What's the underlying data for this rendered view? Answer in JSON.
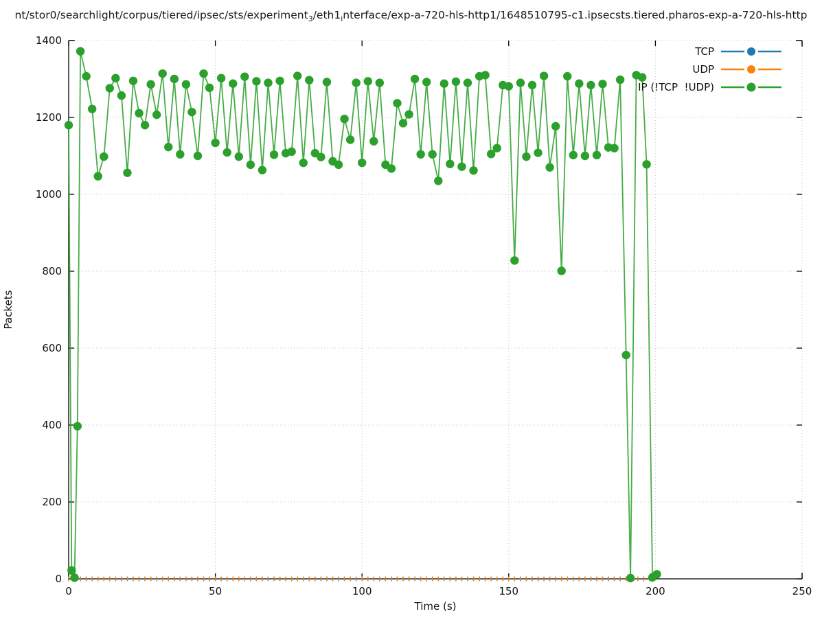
{
  "title": {
    "runs": [
      {
        "t": "nt/stor0/searchlight/corpus/tiered/ipsec/sts/experiment"
      },
      {
        "t": "3",
        "sub": true
      },
      {
        "t": "/eth1"
      },
      {
        "t": "i",
        "sub": true
      },
      {
        "t": "nterface/exp-a-720-hls-http1/1648510795-c1.ipsecsts.tiered.pharos-exp-a-720-hls-http"
      }
    ]
  },
  "axes": {
    "x": {
      "label": "Time (s)",
      "min": 0,
      "max": 250,
      "ticks": [
        0,
        50,
        100,
        150,
        200,
        250
      ]
    },
    "y": {
      "label": "Packets",
      "min": 0,
      "max": 1400,
      "ticks": [
        0,
        200,
        400,
        600,
        800,
        1000,
        1200,
        1400
      ]
    }
  },
  "legend": [
    {
      "label": "TCP",
      "color": "#1f77b4"
    },
    {
      "label": "UDP",
      "color": "#ff7f0e"
    },
    {
      "label": "IP (!TCP  !UDP)",
      "color": "#2ca02c"
    }
  ],
  "colors": {
    "grid": "#c4c4c4",
    "axis": "#000000",
    "tcp": "#1f77b4",
    "udp": "#ff7f0e",
    "ip_other": "#2ca02c"
  },
  "chart_data": {
    "type": "line",
    "title_path": "nt/stor0/searchlight/corpus/tiered/ipsec/sts/experiment_3/eth1_interface/exp-a-720-hls-http1/1648510795-c1.ipsecsts.tiered.pharos-exp-a-720-hls-http",
    "xlabel": "Time (s)",
    "ylabel": "Packets",
    "xlim": [
      0,
      250
    ],
    "ylim": [
      0,
      1400
    ],
    "grid": "dotted, at major ticks",
    "legend_position": "top-right-inside",
    "series": [
      {
        "name": "TCP",
        "color": "#1f77b4",
        "marker": "circle",
        "style": "constant zero, completely hidden beneath UDP markers on the x-axis",
        "value": 0,
        "t_start": 0,
        "t_end": 198,
        "t_step": 2
      },
      {
        "name": "UDP",
        "color": "#ff7f0e",
        "marker": "small-vertical-dash",
        "style": "constant zero along x-axis",
        "value": 0,
        "t_start": 0,
        "t_end": 198,
        "t_step": 2
      },
      {
        "name": "IP (!TCP  !UDP)",
        "color": "#2ca02c",
        "marker": "filled-circle",
        "points": [
          [
            0,
            1180
          ],
          [
            1,
            22
          ],
          [
            2,
            3
          ],
          [
            3,
            397
          ],
          [
            4,
            1372
          ],
          [
            6,
            1307
          ],
          [
            8,
            1222
          ],
          [
            10,
            1047
          ],
          [
            12,
            1098
          ],
          [
            14,
            1276
          ],
          [
            16,
            1302
          ],
          [
            18,
            1257
          ],
          [
            20,
            1056
          ],
          [
            22,
            1295
          ],
          [
            24,
            1211
          ],
          [
            26,
            1180
          ],
          [
            28,
            1286
          ],
          [
            30,
            1207
          ],
          [
            32,
            1314
          ],
          [
            34,
            1123
          ],
          [
            36,
            1300
          ],
          [
            38,
            1104
          ],
          [
            40,
            1286
          ],
          [
            42,
            1214
          ],
          [
            44,
            1100
          ],
          [
            46,
            1314
          ],
          [
            48,
            1277
          ],
          [
            50,
            1134
          ],
          [
            52,
            1302
          ],
          [
            54,
            1109
          ],
          [
            56,
            1288
          ],
          [
            58,
            1098
          ],
          [
            60,
            1306
          ],
          [
            62,
            1077
          ],
          [
            64,
            1294
          ],
          [
            66,
            1063
          ],
          [
            68,
            1290
          ],
          [
            70,
            1103
          ],
          [
            72,
            1295
          ],
          [
            74,
            1107
          ],
          [
            76,
            1111
          ],
          [
            78,
            1308
          ],
          [
            80,
            1082
          ],
          [
            82,
            1297
          ],
          [
            84,
            1107
          ],
          [
            86,
            1097
          ],
          [
            88,
            1292
          ],
          [
            90,
            1086
          ],
          [
            92,
            1077
          ],
          [
            94,
            1196
          ],
          [
            96,
            1142
          ],
          [
            98,
            1290
          ],
          [
            100,
            1082
          ],
          [
            102,
            1294
          ],
          [
            104,
            1138
          ],
          [
            106,
            1290
          ],
          [
            108,
            1077
          ],
          [
            110,
            1067
          ],
          [
            112,
            1237
          ],
          [
            114,
            1185
          ],
          [
            116,
            1208
          ],
          [
            118,
            1300
          ],
          [
            120,
            1104
          ],
          [
            122,
            1292
          ],
          [
            124,
            1104
          ],
          [
            126,
            1035
          ],
          [
            128,
            1288
          ],
          [
            130,
            1079
          ],
          [
            132,
            1293
          ],
          [
            134,
            1072
          ],
          [
            136,
            1290
          ],
          [
            138,
            1062
          ],
          [
            140,
            1307
          ],
          [
            142,
            1310
          ],
          [
            144,
            1105
          ],
          [
            146,
            1120
          ],
          [
            148,
            1284
          ],
          [
            150,
            1281
          ],
          [
            152,
            828
          ],
          [
            154,
            1290
          ],
          [
            156,
            1098
          ],
          [
            158,
            1284
          ],
          [
            160,
            1108
          ],
          [
            162,
            1308
          ],
          [
            164,
            1070
          ],
          [
            166,
            1177
          ],
          [
            168,
            801
          ],
          [
            170,
            1307
          ],
          [
            172,
            1102
          ],
          [
            174,
            1288
          ],
          [
            176,
            1100
          ],
          [
            178,
            1284
          ],
          [
            180,
            1102
          ],
          [
            182,
            1287
          ],
          [
            184,
            1122
          ],
          [
            186,
            1120
          ],
          [
            188,
            1298
          ],
          [
            190,
            582
          ],
          [
            191.5,
            2
          ],
          [
            193.5,
            1310
          ],
          [
            195.5,
            1304
          ],
          [
            197,
            1078
          ],
          [
            199,
            4
          ],
          [
            200.5,
            12
          ]
        ]
      }
    ]
  }
}
